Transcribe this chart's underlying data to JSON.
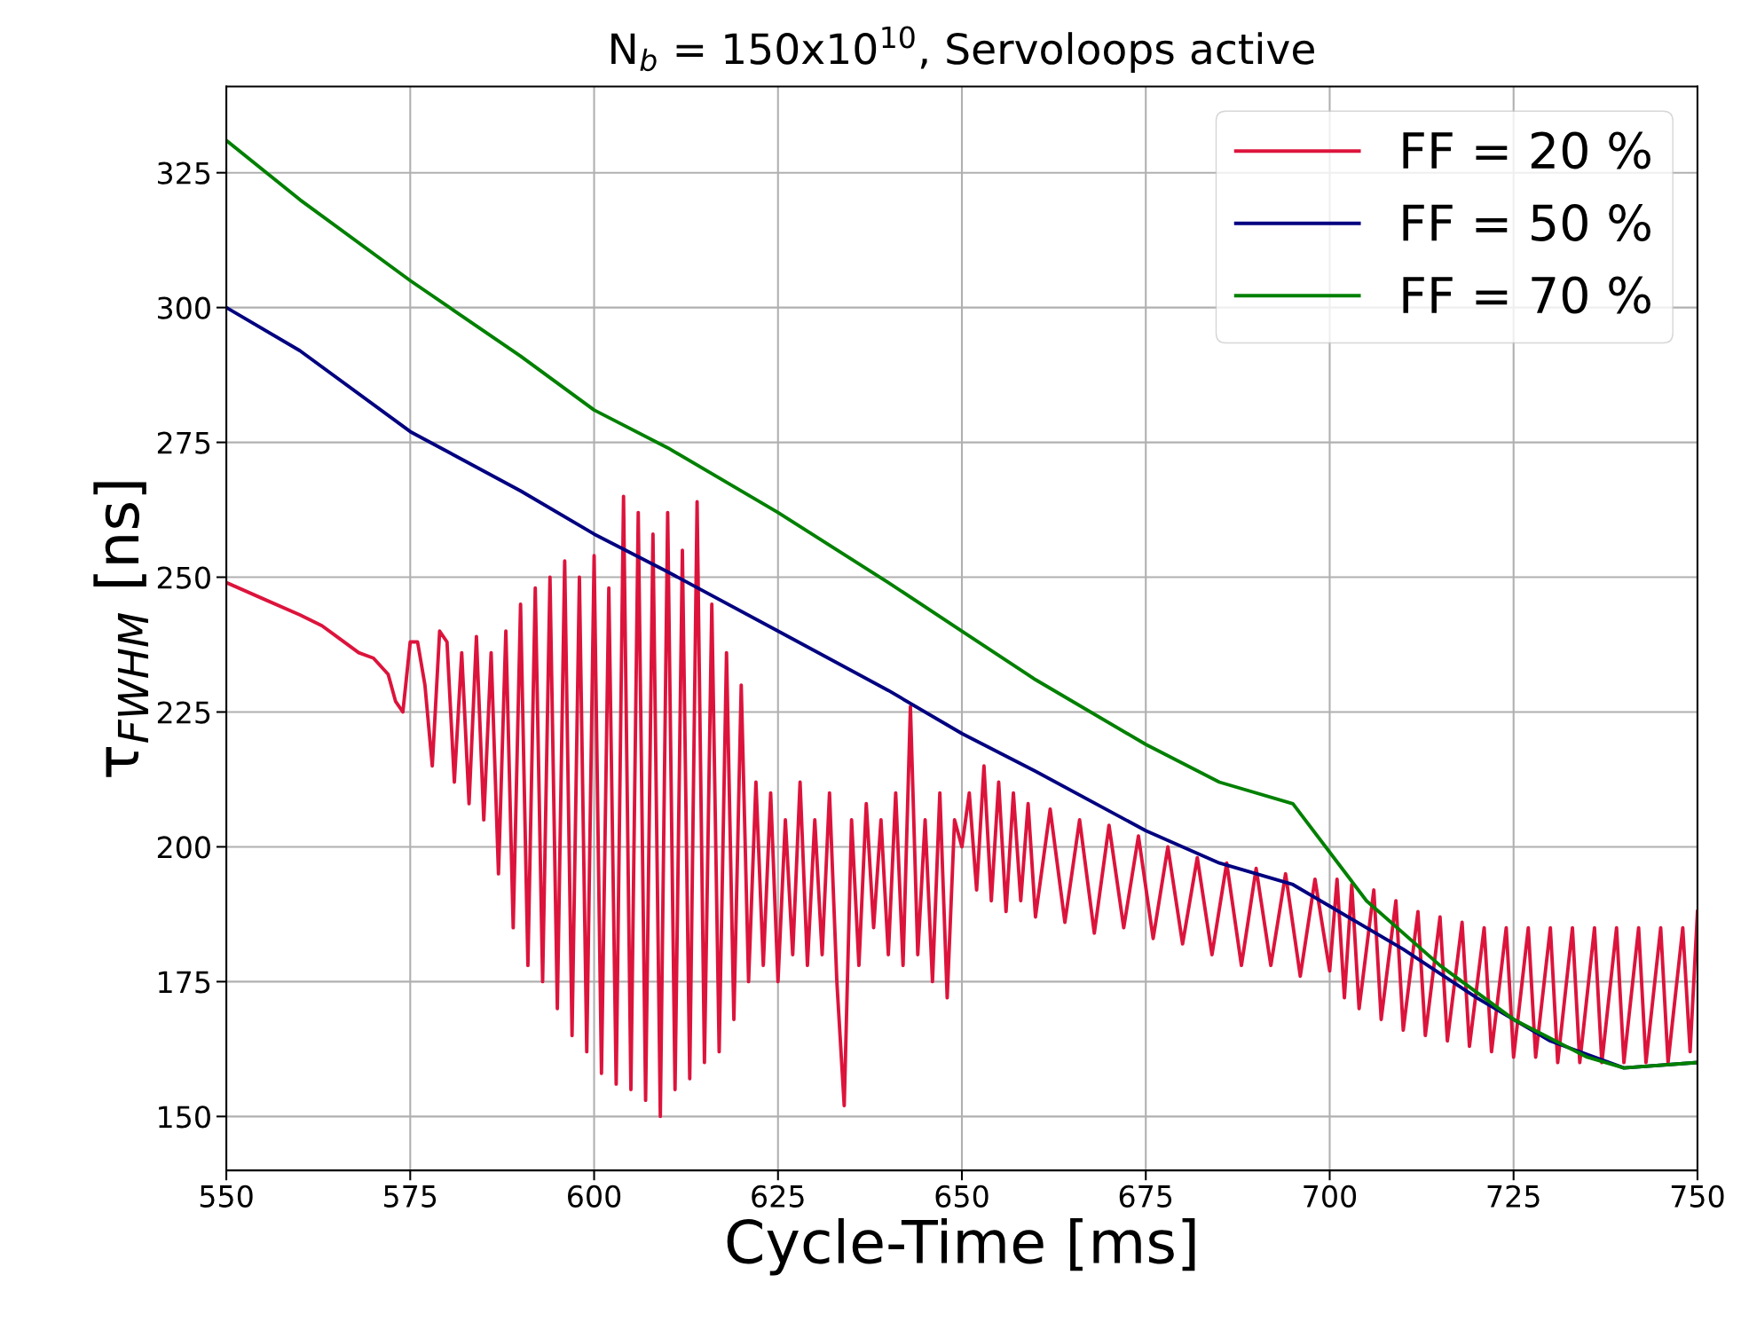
{
  "chart_data": {
    "type": "line",
    "title": "N$_{b}$ = 150x10$^{10}$, Servoloops active",
    "xlabel": "Cycle-Time [ms]",
    "ylabel": "τ$_{FWHM}$ [ns]",
    "xlim": [
      550,
      750
    ],
    "xticks": [
      550,
      575,
      600,
      625,
      650,
      675,
      700,
      725,
      750
    ],
    "ylim": [
      140,
      341
    ],
    "yticks": [
      150,
      175,
      200,
      225,
      250,
      275,
      300,
      325
    ],
    "grid": true,
    "legend": "top right",
    "series": [
      {
        "name": "FF = 20 %",
        "color": "#dc143c",
        "x": [
          550,
          555,
          560,
          563,
          565,
          568,
          570,
          572,
          573,
          574,
          575,
          576,
          577,
          578,
          579,
          580,
          581,
          582,
          583,
          584,
          585,
          586,
          587,
          588,
          589,
          590,
          591,
          592,
          593,
          594,
          595,
          596,
          597,
          598,
          599,
          600,
          601,
          602,
          603,
          604,
          605,
          606,
          607,
          608,
          609,
          610,
          611,
          612,
          613,
          614,
          615,
          616,
          617,
          618,
          619,
          620,
          621,
          622,
          623,
          624,
          625,
          626,
          627,
          628,
          629,
          630,
          631,
          632,
          633,
          634,
          635,
          636,
          637,
          638,
          639,
          640,
          641,
          642,
          643,
          644,
          645,
          646,
          647,
          648,
          649,
          650,
          651,
          652,
          653,
          654,
          655,
          656,
          657,
          658,
          659,
          660,
          662,
          664,
          666,
          668,
          670,
          672,
          674,
          676,
          678,
          680,
          682,
          684,
          686,
          688,
          690,
          692,
          694,
          696,
          698,
          700,
          701,
          702,
          703,
          704,
          706,
          707,
          709,
          710,
          712,
          713,
          715,
          716,
          718,
          719,
          721,
          722,
          724,
          725,
          727,
          728,
          730,
          731,
          733,
          734,
          736,
          737,
          739,
          740,
          742,
          743,
          745,
          746,
          748,
          749,
          750
        ],
        "values": [
          249,
          246,
          243,
          241,
          239,
          236,
          235,
          232,
          227,
          225,
          238,
          238,
          230,
          215,
          240,
          238,
          212,
          236,
          208,
          239,
          205,
          236,
          195,
          240,
          185,
          245,
          178,
          248,
          175,
          250,
          170,
          253,
          165,
          250,
          162,
          254,
          158,
          248,
          156,
          265,
          155,
          262,
          153,
          258,
          150,
          262,
          155,
          255,
          157,
          264,
          160,
          245,
          162,
          236,
          168,
          230,
          175,
          212,
          178,
          210,
          175,
          205,
          180,
          212,
          178,
          205,
          180,
          210,
          175,
          152,
          205,
          178,
          208,
          185,
          205,
          180,
          210,
          178,
          226,
          180,
          205,
          175,
          210,
          172,
          205,
          200,
          210,
          192,
          215,
          190,
          212,
          188,
          210,
          190,
          208,
          187,
          207,
          186,
          205,
          184,
          204,
          185,
          202,
          183,
          200,
          182,
          198,
          180,
          197,
          178,
          196,
          178,
          195,
          176,
          194,
          177,
          194,
          172,
          193,
          170,
          192,
          168,
          190,
          166,
          188,
          165,
          187,
          164,
          186,
          163,
          185,
          162,
          185,
          161,
          185,
          161,
          185,
          160,
          185,
          160,
          185,
          160,
          185,
          160,
          185,
          160,
          185,
          160,
          185,
          162,
          188
        ]
      },
      {
        "name": "FF = 50 %",
        "color": "#000080",
        "x": [
          550,
          560,
          575,
          590,
          600,
          610,
          625,
          640,
          650,
          660,
          675,
          685,
          695,
          700,
          710,
          720,
          730,
          740,
          750
        ],
        "values": [
          300,
          292,
          277,
          266,
          258,
          251,
          240,
          229,
          221,
          214,
          203,
          197,
          193,
          189,
          181,
          172,
          164,
          159,
          160
        ]
      },
      {
        "name": "FF = 70 %",
        "color": "#008000",
        "x": [
          550,
          560,
          575,
          590,
          600,
          610,
          625,
          640,
          650,
          660,
          675,
          685,
          695,
          700,
          705,
          715,
          725,
          735,
          740,
          750
        ],
        "values": [
          331,
          320,
          305,
          291,
          281,
          274,
          262,
          249,
          240,
          231,
          219,
          212,
          208,
          199,
          190,
          178,
          168,
          161,
          159,
          160
        ]
      }
    ]
  }
}
